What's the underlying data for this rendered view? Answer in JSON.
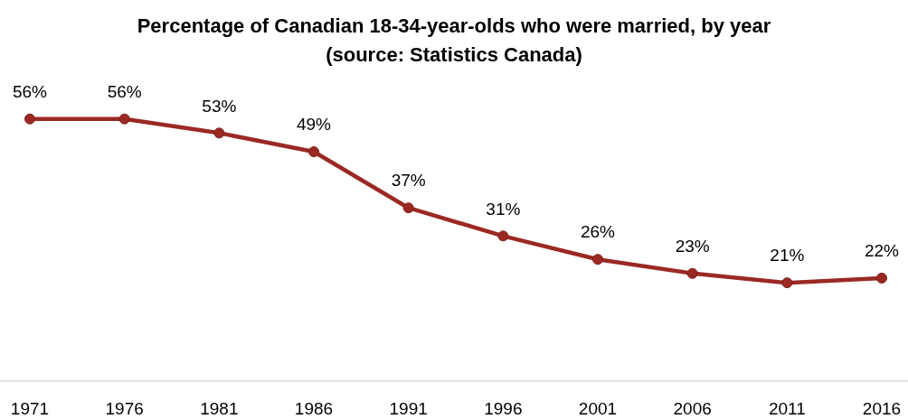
{
  "chart_data": {
    "type": "line",
    "title": "Percentage of Canadian 18-34-year-olds who were married, by year (source: Statistics Canada)",
    "categories": [
      "1971",
      "1976",
      "1981",
      "1986",
      "1991",
      "1996",
      "2001",
      "2006",
      "2011",
      "2016"
    ],
    "series": [
      {
        "color": "#9b2923",
        "values": [
          56,
          56,
          53,
          49,
          37,
          31,
          26,
          23,
          21,
          22
        ],
        "value_labels": [
          "56%",
          "56%",
          "53%",
          "49%",
          "37%",
          "31%",
          "26%",
          "23%",
          "21%",
          "22%"
        ]
      }
    ],
    "tick_labels": "x",
    "marker": "circle"
  }
}
